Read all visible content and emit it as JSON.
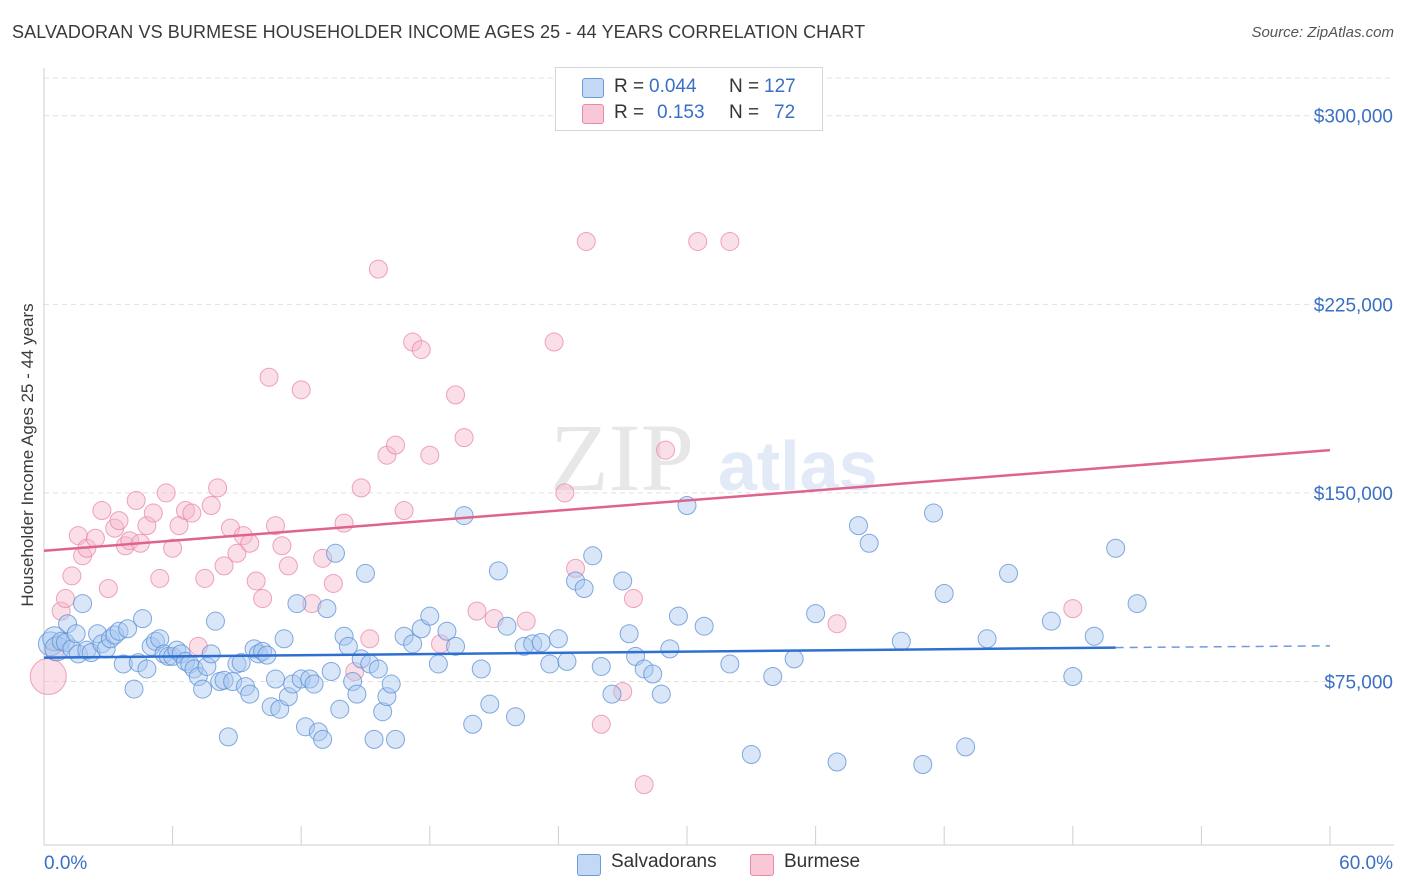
{
  "header": {
    "title": "SALVADORAN VS BURMESE HOUSEHOLDER INCOME AGES 25 - 44 YEARS CORRELATION CHART",
    "source": "Source: ZipAtlas.com"
  },
  "legend": {
    "rows": [
      {
        "r_label": "R =",
        "r_value": "0.044",
        "n_label": "N =",
        "n_value": "127"
      },
      {
        "r_label": "R =",
        "r_value": "0.153",
        "n_label": "N =",
        "n_value": "72"
      }
    ]
  },
  "bottom_legend": {
    "items": [
      {
        "label": "Salvadorans"
      },
      {
        "label": "Burmese"
      }
    ]
  },
  "watermark": {
    "zip": "ZIP",
    "atlas": "atlas"
  },
  "colors": {
    "blue_fill": "#a8c8f0",
    "blue_stroke": "#5a8fd6",
    "blue_line": "#2e6fd1",
    "pink_fill": "#f7b8cb",
    "pink_stroke": "#e87fa0",
    "pink_line": "#e0638e",
    "axis_text": "#3a6fc4",
    "grid": "#e0e0e0"
  },
  "chart_data": {
    "type": "scatter",
    "title": "SALVADORAN VS BURMESE HOUSEHOLDER INCOME AGES 25 - 44 YEARS CORRELATION CHART",
    "xlabel": "",
    "ylabel": "Householder Income Ages 25 - 44 years",
    "xlim": [
      0,
      60
    ],
    "ylim": [
      10000,
      315000
    ],
    "x_tick_labels": [
      "0.0%",
      "60.0%"
    ],
    "y_ticks": [
      75000,
      150000,
      225000,
      300000
    ],
    "y_tick_labels": [
      "$75,000",
      "$150,000",
      "$225,000",
      "$300,000"
    ],
    "grid": true,
    "legend_position": "top-center",
    "series": [
      {
        "name": "Salvadorans",
        "r": 0.044,
        "n": 127,
        "trend": {
          "x0": 0,
          "y0": 84500,
          "x1": 50,
          "y1": 88500,
          "dash_to_x": 60,
          "dash_to_y": 89200
        },
        "points": [
          [
            0.3,
            90000
          ],
          [
            0.5,
            92000
          ],
          [
            0.6,
            88000
          ],
          [
            0.8,
            91000
          ],
          [
            1.0,
            90500
          ],
          [
            1.1,
            98000
          ],
          [
            1.3,
            88000
          ],
          [
            1.5,
            94000
          ],
          [
            1.6,
            86000
          ],
          [
            1.8,
            106000
          ],
          [
            2.0,
            87500
          ],
          [
            2.2,
            86500
          ],
          [
            2.5,
            94000
          ],
          [
            2.7,
            90000
          ],
          [
            2.9,
            88000
          ],
          [
            3.1,
            92000
          ],
          [
            3.3,
            93500
          ],
          [
            3.5,
            95000
          ],
          [
            3.7,
            82000
          ],
          [
            3.9,
            96000
          ],
          [
            4.2,
            72000
          ],
          [
            4.4,
            82500
          ],
          [
            4.6,
            100000
          ],
          [
            4.8,
            80000
          ],
          [
            5.0,
            89000
          ],
          [
            5.2,
            91000
          ],
          [
            5.4,
            92000
          ],
          [
            5.6,
            86000
          ],
          [
            5.8,
            85000
          ],
          [
            6.0,
            85000
          ],
          [
            6.2,
            87500
          ],
          [
            6.4,
            86000
          ],
          [
            6.6,
            83000
          ],
          [
            6.8,
            82000
          ],
          [
            7.0,
            80000
          ],
          [
            7.2,
            77000
          ],
          [
            7.4,
            72000
          ],
          [
            7.6,
            81000
          ],
          [
            7.8,
            86000
          ],
          [
            8.0,
            99000
          ],
          [
            8.2,
            75000
          ],
          [
            8.4,
            75500
          ],
          [
            8.6,
            53000
          ],
          [
            8.8,
            75000
          ],
          [
            9.0,
            82000
          ],
          [
            9.2,
            82500
          ],
          [
            9.4,
            73000
          ],
          [
            9.6,
            70000
          ],
          [
            9.8,
            88000
          ],
          [
            10.0,
            86000
          ],
          [
            10.2,
            87000
          ],
          [
            10.4,
            85500
          ],
          [
            10.6,
            65000
          ],
          [
            10.8,
            76000
          ],
          [
            11.0,
            64000
          ],
          [
            11.2,
            92000
          ],
          [
            11.4,
            69000
          ],
          [
            11.6,
            74000
          ],
          [
            11.8,
            106000
          ],
          [
            12.0,
            76000
          ],
          [
            12.2,
            57000
          ],
          [
            12.4,
            76000
          ],
          [
            12.6,
            74000
          ],
          [
            12.8,
            55000
          ],
          [
            13.0,
            52000
          ],
          [
            13.2,
            104000
          ],
          [
            13.4,
            79000
          ],
          [
            13.6,
            126000
          ],
          [
            13.8,
            64000
          ],
          [
            14.0,
            93000
          ],
          [
            14.2,
            89000
          ],
          [
            14.4,
            75000
          ],
          [
            14.6,
            70000
          ],
          [
            14.8,
            84000
          ],
          [
            15.0,
            118000
          ],
          [
            15.2,
            82000
          ],
          [
            15.4,
            52000
          ],
          [
            15.6,
            80000
          ],
          [
            15.8,
            63000
          ],
          [
            16.0,
            69000
          ],
          [
            16.2,
            74000
          ],
          [
            16.4,
            52000
          ],
          [
            16.8,
            93000
          ],
          [
            17.2,
            90000
          ],
          [
            17.6,
            96000
          ],
          [
            18.0,
            101000
          ],
          [
            18.4,
            82000
          ],
          [
            18.8,
            95000
          ],
          [
            19.2,
            89000
          ],
          [
            19.6,
            141000
          ],
          [
            20.0,
            58000
          ],
          [
            20.4,
            80000
          ],
          [
            20.8,
            66000
          ],
          [
            21.2,
            119000
          ],
          [
            21.6,
            97000
          ],
          [
            22.0,
            61000
          ],
          [
            22.4,
            89000
          ],
          [
            22.8,
            90000
          ],
          [
            23.2,
            90500
          ],
          [
            23.6,
            82000
          ],
          [
            24.0,
            92000
          ],
          [
            24.4,
            83000
          ],
          [
            24.8,
            115000
          ],
          [
            25.2,
            112000
          ],
          [
            25.6,
            125000
          ],
          [
            26.0,
            81000
          ],
          [
            26.5,
            70000
          ],
          [
            27.0,
            115000
          ],
          [
            27.3,
            94000
          ],
          [
            27.6,
            85000
          ],
          [
            28.0,
            80000
          ],
          [
            28.4,
            78000
          ],
          [
            28.8,
            70000
          ],
          [
            29.2,
            88000
          ],
          [
            29.6,
            101000
          ],
          [
            30.0,
            145000
          ],
          [
            30.8,
            97000
          ],
          [
            32.0,
            82000
          ],
          [
            33.0,
            46000
          ],
          [
            34.0,
            77000
          ],
          [
            35.0,
            84000
          ],
          [
            36.0,
            102000
          ],
          [
            37.0,
            43000
          ],
          [
            38.0,
            137000
          ],
          [
            38.5,
            130000
          ],
          [
            40.0,
            91000
          ],
          [
            41.0,
            42000
          ],
          [
            41.5,
            142000
          ],
          [
            42.0,
            110000
          ],
          [
            43.0,
            49000
          ],
          [
            44.0,
            92000
          ],
          [
            45.0,
            118000
          ],
          [
            47.0,
            99000
          ],
          [
            48.0,
            77000
          ],
          [
            49.0,
            93000
          ],
          [
            50.0,
            128000
          ],
          [
            51.0,
            106000
          ]
        ]
      },
      {
        "name": "Burmese",
        "r": 0.153,
        "n": 72,
        "trend": {
          "x0": 0,
          "y0": 127000,
          "x1": 60,
          "y1": 167000
        },
        "points": [
          [
            0.2,
            77000
          ],
          [
            0.5,
            87000
          ],
          [
            0.8,
            103000
          ],
          [
            1.0,
            108000
          ],
          [
            1.3,
            117000
          ],
          [
            1.6,
            133000
          ],
          [
            1.8,
            125000
          ],
          [
            2.0,
            128000
          ],
          [
            2.4,
            132000
          ],
          [
            2.7,
            143000
          ],
          [
            3.0,
            112000
          ],
          [
            3.3,
            136000
          ],
          [
            3.5,
            139000
          ],
          [
            3.8,
            129000
          ],
          [
            4.0,
            131000
          ],
          [
            4.3,
            147000
          ],
          [
            4.5,
            130000
          ],
          [
            4.8,
            137000
          ],
          [
            5.1,
            142000
          ],
          [
            5.4,
            116000
          ],
          [
            5.7,
            150000
          ],
          [
            6.0,
            128000
          ],
          [
            6.3,
            137000
          ],
          [
            6.6,
            143000
          ],
          [
            6.9,
            142000
          ],
          [
            7.2,
            89000
          ],
          [
            7.5,
            116000
          ],
          [
            7.8,
            145000
          ],
          [
            8.1,
            152000
          ],
          [
            8.4,
            121000
          ],
          [
            8.7,
            136000
          ],
          [
            9.0,
            126000
          ],
          [
            9.3,
            133000
          ],
          [
            9.6,
            130000
          ],
          [
            9.9,
            115000
          ],
          [
            10.2,
            108000
          ],
          [
            10.5,
            196000
          ],
          [
            10.8,
            137000
          ],
          [
            11.1,
            129000
          ],
          [
            11.4,
            121000
          ],
          [
            12.0,
            191000
          ],
          [
            12.5,
            106000
          ],
          [
            13.0,
            124000
          ],
          [
            13.5,
            114000
          ],
          [
            14.0,
            138000
          ],
          [
            14.5,
            79000
          ],
          [
            14.8,
            152000
          ],
          [
            15.2,
            92000
          ],
          [
            15.6,
            239000
          ],
          [
            16.0,
            165000
          ],
          [
            16.4,
            169000
          ],
          [
            16.8,
            143000
          ],
          [
            17.2,
            210000
          ],
          [
            17.6,
            207000
          ],
          [
            18.0,
            165000
          ],
          [
            18.5,
            90000
          ],
          [
            19.2,
            189000
          ],
          [
            19.6,
            172000
          ],
          [
            20.2,
            103000
          ],
          [
            21.0,
            100000
          ],
          [
            22.5,
            99000
          ],
          [
            23.8,
            210000
          ],
          [
            24.3,
            150000
          ],
          [
            24.8,
            120000
          ],
          [
            25.3,
            250000
          ],
          [
            26.0,
            58000
          ],
          [
            27.0,
            71000
          ],
          [
            27.5,
            108000
          ],
          [
            28.0,
            34000
          ],
          [
            29.0,
            167000
          ],
          [
            30.5,
            250000
          ],
          [
            32.0,
            250000
          ],
          [
            37.0,
            98000
          ],
          [
            48.0,
            104000
          ]
        ]
      }
    ]
  }
}
